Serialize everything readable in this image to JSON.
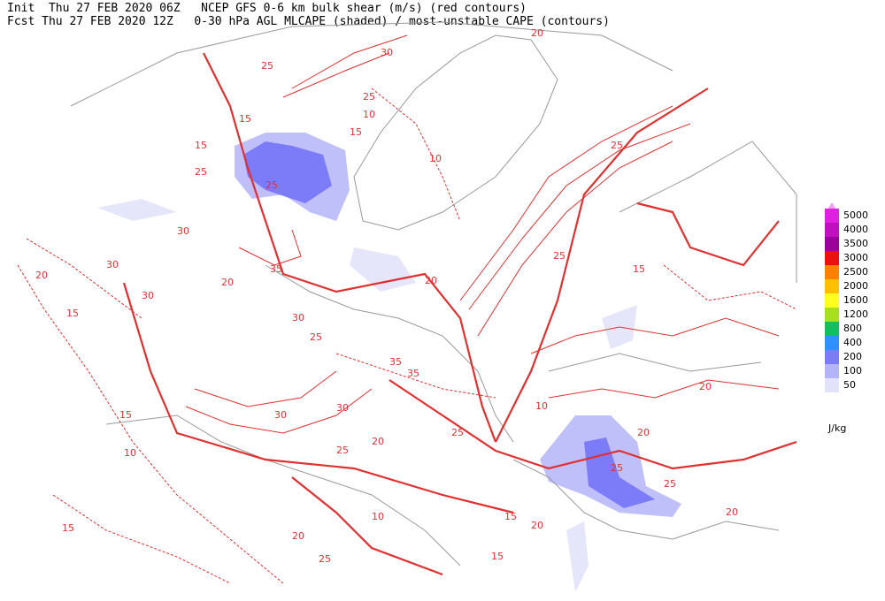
{
  "header": {
    "line1": "Init  Thu 27 FEB 2020 06Z   NCEP GFS 0-6 km bulk shear (m/s) (red contours)",
    "line2": "Fcst Thu 27 FEB 2020 12Z   0-30 hPa AGL MLCAPE (shaded) / most-unstable CAPE (contours)"
  },
  "legend": {
    "unit": "J/kg",
    "levels": [
      {
        "label": 5000,
        "color": "#e020e0"
      },
      {
        "label": 4000,
        "color": "#c010c0"
      },
      {
        "label": 3500,
        "color": "#9a009a"
      },
      {
        "label": 3000,
        "color": "#ee1010"
      },
      {
        "label": 2500,
        "color": "#ff8000"
      },
      {
        "label": 2000,
        "color": "#ffc000"
      },
      {
        "label": 1600,
        "color": "#ffff20"
      },
      {
        "label": 1200,
        "color": "#a8e020"
      },
      {
        "label": 800,
        "color": "#10c060"
      },
      {
        "label": 400,
        "color": "#3090ff"
      },
      {
        "label": 200,
        "color": "#7c7cf8"
      },
      {
        "label": 100,
        "color": "#b4b4f8"
      },
      {
        "label": 50,
        "color": "#e2e2fa"
      }
    ]
  },
  "contour_labels": [
    "20",
    "30",
    "25",
    "15",
    "15",
    "25",
    "10",
    "15",
    "10",
    "25",
    "25",
    "30",
    "30",
    "30",
    "20",
    "15",
    "30",
    "35",
    "25",
    "20",
    "25",
    "35",
    "30",
    "15",
    "35",
    "20",
    "25",
    "15",
    "20",
    "10",
    "15",
    "20",
    "25",
    "25",
    "25",
    "20",
    "20",
    "25",
    "15",
    "10",
    "15",
    "20",
    "10",
    "30",
    "25",
    "20"
  ]
}
